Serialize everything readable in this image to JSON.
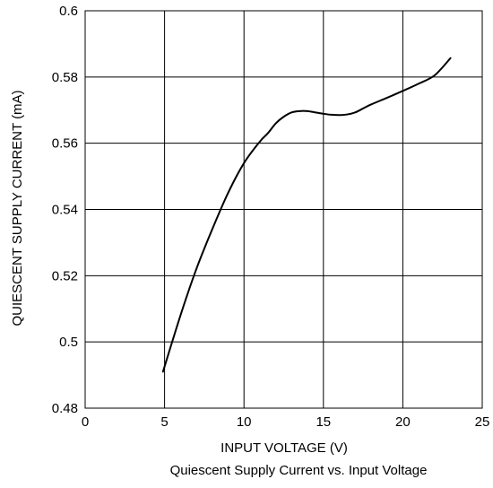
{
  "chart_data": {
    "type": "line",
    "title": "",
    "caption": "Quiescent Supply Current vs. Input Voltage",
    "xlabel": "INPUT VOLTAGE (V)",
    "ylabel": "QUIESCENT SUPPLY CURRENT (mA)",
    "xlim": [
      0,
      25
    ],
    "ylim": [
      0.48,
      0.6
    ],
    "xticks": [
      0,
      5,
      10,
      15,
      20,
      25
    ],
    "yticks": [
      0.48,
      0.5,
      0.52,
      0.54,
      0.56,
      0.58,
      0.6
    ],
    "xtick_labels": [
      "0",
      "5",
      "10",
      "15",
      "20",
      "25"
    ],
    "ytick_labels": [
      "0.48",
      "0.5",
      "0.52",
      "0.54",
      "0.56",
      "0.58",
      "0.6"
    ],
    "grid": true,
    "line_color": "#000000",
    "series": [
      {
        "x": [
          4.9,
          6.0,
          7.0,
          8.0,
          9.0,
          10.0,
          11.0,
          11.5,
          12.0,
          12.5,
          13.0,
          13.5,
          14.0,
          14.5,
          15.0,
          15.5,
          16.0,
          16.5,
          17.0,
          17.5,
          18.0,
          19.0,
          20.0,
          21.0,
          22.0,
          23.0
        ],
        "y": [
          0.491,
          0.508,
          0.522,
          0.534,
          0.545,
          0.554,
          0.5605,
          0.563,
          0.566,
          0.568,
          0.5693,
          0.5697,
          0.5697,
          0.5693,
          0.5689,
          0.5686,
          0.5685,
          0.5687,
          0.5693,
          0.5705,
          0.5717,
          0.5737,
          0.5758,
          0.578,
          0.5805,
          0.5857
        ]
      }
    ]
  }
}
